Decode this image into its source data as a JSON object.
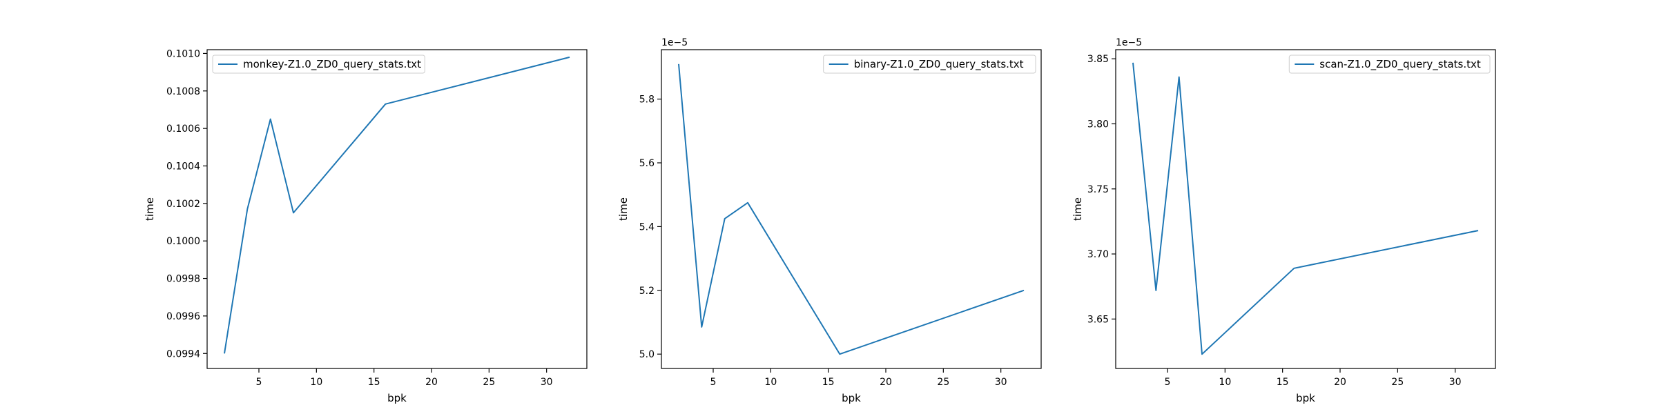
{
  "figure": {
    "background": "#ffffff",
    "line_color": "#1f77b4"
  },
  "chart_data": [
    {
      "type": "line",
      "xlabel": "bpk",
      "ylabel": "time",
      "xlim": [
        0.5,
        33.5
      ],
      "ylim": [
        0.09932,
        0.10102
      ],
      "xticks": [
        5,
        10,
        15,
        20,
        25,
        30
      ],
      "xticklabels": [
        "5",
        "10",
        "15",
        "20",
        "25",
        "30"
      ],
      "yticks": [
        0.0994,
        0.0996,
        0.0998,
        0.1,
        0.1002,
        0.1004,
        0.1006,
        0.1008,
        0.101
      ],
      "yticklabels": [
        "0.0994",
        "0.0996",
        "0.0998",
        "0.1000",
        "0.1002",
        "0.1004",
        "0.1006",
        "0.1008",
        "0.1010"
      ],
      "offset_text": "",
      "legend_position": "upper left",
      "grid": false,
      "series": [
        {
          "name": "monkey-Z1.0_ZD0_query_stats.txt",
          "x": [
            2,
            4,
            6,
            8,
            16,
            32
          ],
          "y": [
            0.0994,
            0.10017,
            0.10065,
            0.10015,
            0.10073,
            0.10098
          ]
        }
      ]
    },
    {
      "type": "line",
      "xlabel": "bpk",
      "ylabel": "time",
      "xlim": [
        0.5,
        33.5
      ],
      "ylim": [
        4.955,
        5.955
      ],
      "xticks": [
        5,
        10,
        15,
        20,
        25,
        30
      ],
      "xticklabels": [
        "5",
        "10",
        "15",
        "20",
        "25",
        "30"
      ],
      "yticks": [
        5.0,
        5.2,
        5.4,
        5.6,
        5.8
      ],
      "yticklabels": [
        "5.0",
        "5.2",
        "5.4",
        "5.6",
        "5.8"
      ],
      "offset_text": "1e−5",
      "legend_position": "upper right",
      "grid": false,
      "series": [
        {
          "name": "binary-Z1.0_ZD0_query_stats.txt",
          "x": [
            2,
            4,
            6,
            8,
            16,
            32
          ],
          "y": [
            5.91,
            5.085,
            5.425,
            5.475,
            5.0,
            5.2
          ]
        }
      ]
    },
    {
      "type": "line",
      "xlabel": "bpk",
      "ylabel": "time",
      "xlim": [
        0.5,
        33.5
      ],
      "ylim": [
        3.612,
        3.857
      ],
      "xticks": [
        5,
        10,
        15,
        20,
        25,
        30
      ],
      "xticklabels": [
        "5",
        "10",
        "15",
        "20",
        "25",
        "30"
      ],
      "yticks": [
        3.65,
        3.7,
        3.75,
        3.8,
        3.85
      ],
      "yticklabels": [
        "3.65",
        "3.70",
        "3.75",
        "3.80",
        "3.85"
      ],
      "offset_text": "1e−5",
      "legend_position": "upper right",
      "grid": false,
      "series": [
        {
          "name": "scan-Z1.0_ZD0_query_stats.txt",
          "x": [
            2,
            4,
            6,
            8,
            16,
            32
          ],
          "y": [
            3.847,
            3.672,
            3.836,
            3.623,
            3.689,
            3.718
          ]
        }
      ]
    }
  ]
}
